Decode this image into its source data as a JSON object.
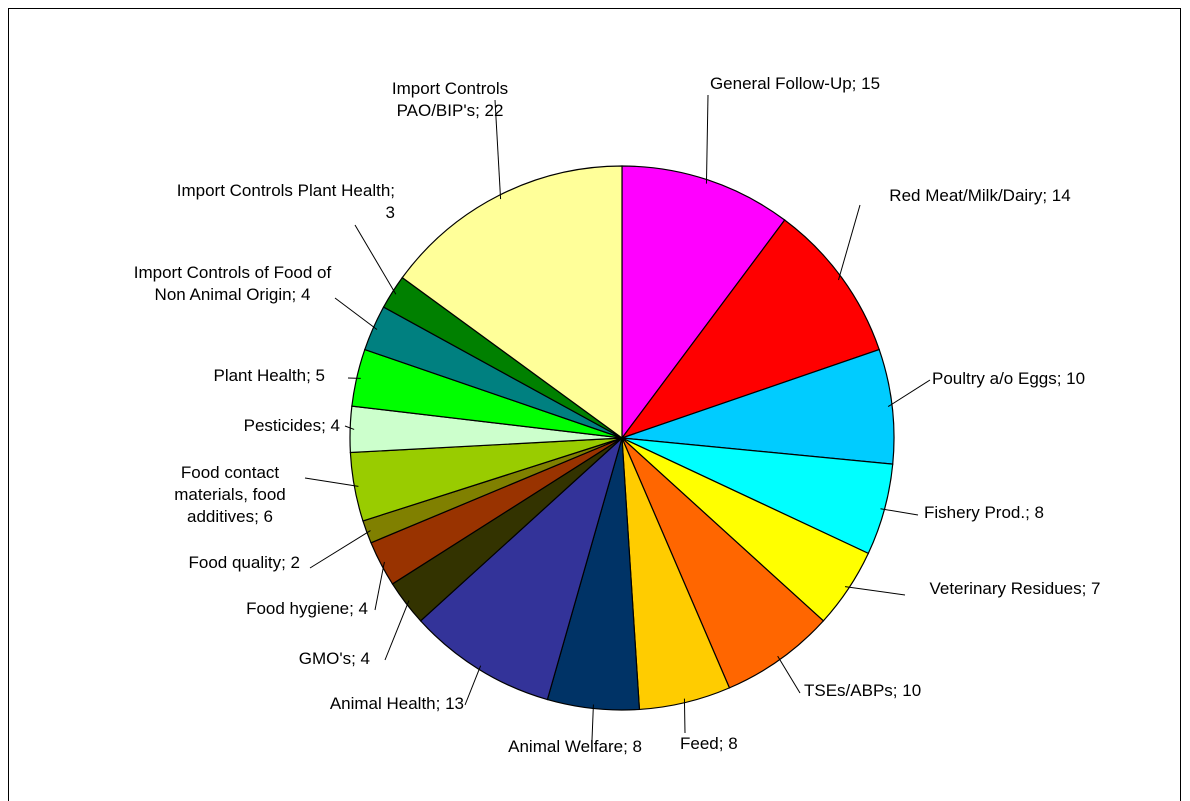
{
  "chart_data": {
    "type": "pie",
    "categories": [
      "General Follow-Up; 15",
      "Red Meat/Milk/Dairy; 14",
      "Poultry a/o Eggs; 10",
      "Fishery Prod.; 8",
      "Veterinary Residues; 7",
      "TSEs/ABPs; 10",
      "Feed; 8",
      "Animal Welfare; 8",
      "Animal Health; 13",
      "GMO's; 4",
      "Food hygiene; 4",
      "Food quality; 2",
      "Food contact materials, food additives; 6",
      "Pesticides; 4",
      "Plant Health; 5",
      "Import Controls of Food of Non Animal Origin; 4",
      "Import Controls Plant Health; 3",
      "Import Controls PAO/BIP's; 22"
    ],
    "values": [
      15,
      14,
      10,
      8,
      7,
      10,
      8,
      8,
      13,
      4,
      4,
      2,
      6,
      4,
      5,
      4,
      3,
      22
    ],
    "colors": [
      "#ff00ff",
      "#ff0000",
      "#00ccff",
      "#00ffff",
      "#ffff00",
      "#ff6600",
      "#ffcc00",
      "#003366",
      "#333399",
      "#333300",
      "#993300",
      "#808000",
      "#99cc00",
      "#ccffcc",
      "#00ff00",
      "#008080",
      "#008000",
      "#ffff99"
    ]
  }
}
